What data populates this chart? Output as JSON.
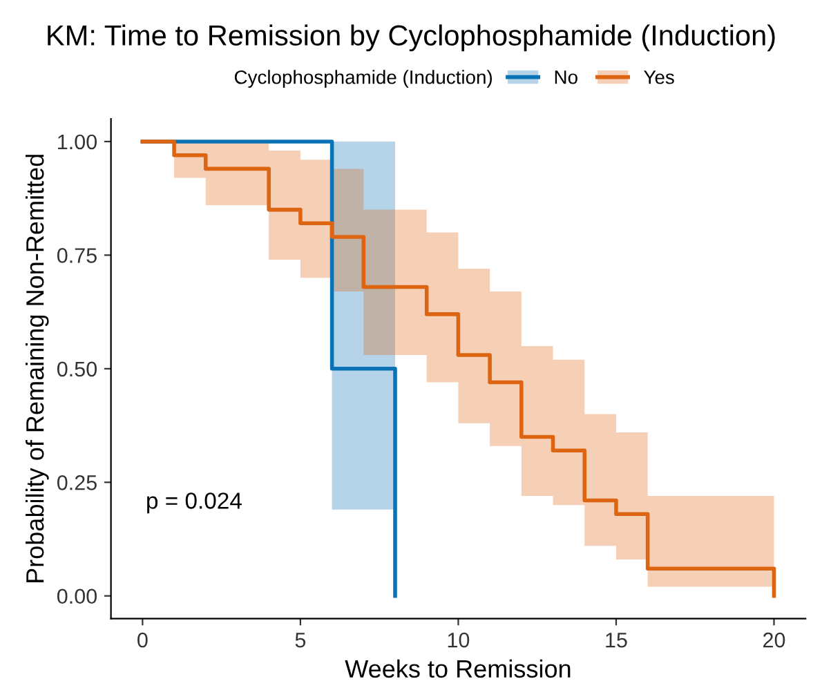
{
  "chart_data": {
    "type": "line",
    "title": "KM: Time to Remission by Cyclophosphamide (Induction)",
    "xlabel": "Weeks to Remission",
    "ylabel": "Probability of Remaining Non-Remitted",
    "legend_title": "Cyclophosphamide (Induction)",
    "legend": "top",
    "grid": false,
    "xlim": [
      -1,
      21
    ],
    "ylim": [
      -0.05,
      1.05
    ],
    "xticks": [
      0,
      5,
      10,
      15,
      20
    ],
    "yticks": [
      {
        "value": 0,
        "label": "0.00"
      },
      {
        "value": 0.25,
        "label": "0.25"
      },
      {
        "value": 0.5,
        "label": "0.50"
      },
      {
        "value": 0.75,
        "label": "0.75"
      },
      {
        "value": 1,
        "label": "1.00"
      }
    ],
    "annotations": [
      "p = 0.024"
    ],
    "series": [
      {
        "name": "No",
        "color": "#0b72b5",
        "x": [
          0,
          6,
          6,
          8,
          8
        ],
        "values": [
          1,
          1,
          0.5,
          0.5,
          0
        ],
        "lower": [
          null,
          null,
          0.19,
          0.19,
          null
        ],
        "upper": [
          null,
          null,
          1,
          1,
          null
        ]
      },
      {
        "name": "Yes",
        "color": "#dd6512",
        "x": [
          0,
          1,
          1,
          2,
          2,
          4,
          4,
          5,
          5,
          6,
          6,
          7,
          7,
          9,
          9,
          10,
          10,
          11,
          11,
          12,
          12,
          13,
          13,
          14,
          14,
          15,
          15,
          16,
          16,
          20,
          20
        ],
        "values": [
          1,
          1,
          0.97,
          0.97,
          0.94,
          0.94,
          0.85,
          0.85,
          0.82,
          0.82,
          0.79,
          0.79,
          0.68,
          0.68,
          0.62,
          0.62,
          0.53,
          0.53,
          0.47,
          0.47,
          0.35,
          0.35,
          0.32,
          0.32,
          0.21,
          0.21,
          0.18,
          0.18,
          0.06,
          0.06,
          0
        ],
        "lower": [
          null,
          null,
          0.92,
          0.92,
          0.86,
          0.86,
          0.74,
          0.74,
          0.7,
          0.7,
          0.67,
          0.67,
          0.53,
          0.53,
          0.47,
          0.47,
          0.38,
          0.38,
          0.33,
          0.33,
          0.22,
          0.22,
          0.2,
          0.2,
          0.11,
          0.11,
          0.08,
          0.08,
          0.02,
          0.02,
          null
        ],
        "upper": [
          null,
          null,
          1,
          1,
          1,
          1,
          0.98,
          0.98,
          0.96,
          0.96,
          0.94,
          0.94,
          0.85,
          0.85,
          0.8,
          0.8,
          0.72,
          0.72,
          0.67,
          0.67,
          0.55,
          0.55,
          0.52,
          0.52,
          0.4,
          0.4,
          0.36,
          0.36,
          0.22,
          0.22,
          null
        ]
      }
    ]
  }
}
